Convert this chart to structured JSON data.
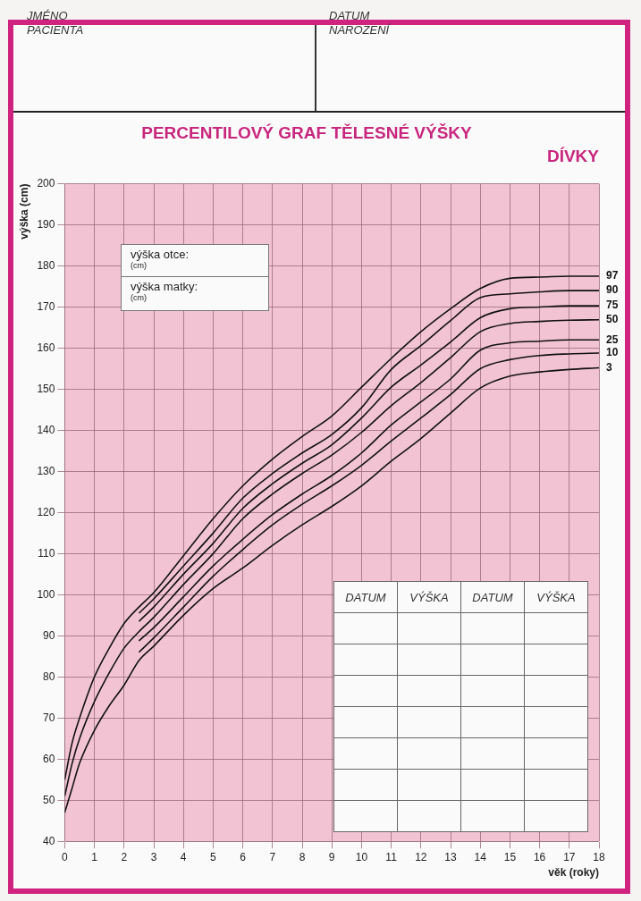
{
  "chart_data": {
    "type": "line",
    "title": "PERCENTILOVÝ GRAF TĚLESNÉ VÝŠKY",
    "subtitle": "DÍVKY",
    "xlabel": "věk (roky)",
    "ylabel": "výška (cm)",
    "x": [
      0,
      0.25,
      0.5,
      1,
      1.5,
      2,
      2.5,
      3,
      4,
      5,
      6,
      7,
      8,
      9,
      10,
      11,
      12,
      13,
      14,
      15,
      16,
      17,
      18
    ],
    "series": [
      {
        "name": "97",
        "color": "#111111",
        "values": [
          55,
          64,
          70,
          80,
          87,
          93,
          97,
          100.5,
          109.5,
          118.5,
          126.5,
          133,
          138.5,
          143.5,
          150.5,
          157.5,
          164,
          169.6,
          174.5,
          177,
          177.3,
          177.5,
          177.5
        ]
      },
      {
        "name": "90",
        "color": "#111111",
        "values": [
          null,
          null,
          null,
          null,
          null,
          null,
          95.5,
          99,
          107,
          115,
          123.5,
          129.5,
          134.5,
          139,
          145.5,
          154.8,
          160.6,
          166.7,
          172.3,
          173.2,
          173.7,
          174,
          174
        ]
      },
      {
        "name": "75",
        "color": "#111111",
        "values": [
          null,
          null,
          null,
          null,
          null,
          null,
          93.5,
          97,
          105,
          112.5,
          121,
          127,
          132,
          136.5,
          143,
          150.5,
          155.9,
          161.5,
          167.4,
          169.6,
          170,
          170.3,
          170.3
        ]
      },
      {
        "name": "50",
        "color": "#111111",
        "values": [
          51,
          59,
          65,
          74,
          81,
          87,
          91,
          94.5,
          102.5,
          110,
          118.5,
          124.5,
          129.5,
          134,
          139.5,
          146,
          151.6,
          157.7,
          164,
          166,
          166.5,
          166.8,
          166.9
        ]
      },
      {
        "name": "25",
        "color": "#111111",
        "values": [
          null,
          null,
          null,
          null,
          null,
          null,
          88.8,
          92,
          99.5,
          107,
          113.5,
          119.5,
          124.5,
          129,
          134.5,
          141.3,
          146.9,
          152.5,
          159.5,
          161.3,
          161.7,
          162,
          162
        ]
      },
      {
        "name": "10",
        "color": "#111111",
        "values": [
          null,
          null,
          null,
          null,
          null,
          null,
          86,
          89.5,
          97,
          104.5,
          111,
          117,
          122,
          126.5,
          131.5,
          137.4,
          143,
          148.7,
          155,
          157.2,
          158.2,
          158.6,
          158.8
        ]
      },
      {
        "name": "3",
        "color": "#111111",
        "values": [
          47,
          53,
          59,
          67,
          73,
          78,
          84,
          87.5,
          95,
          101.5,
          106.5,
          112,
          117,
          121.5,
          126.5,
          132.5,
          138,
          144.2,
          150.3,
          153.2,
          154.2,
          154.8,
          155.2
        ]
      }
    ],
    "xlim": [
      0,
      18
    ],
    "xticks": [
      0,
      1,
      2,
      3,
      4,
      5,
      6,
      7,
      8,
      9,
      10,
      11,
      12,
      13,
      14,
      15,
      16,
      17,
      18
    ],
    "ylim": [
      40,
      200
    ],
    "yticks": [
      40,
      50,
      60,
      70,
      80,
      90,
      100,
      110,
      120,
      130,
      140,
      150,
      160,
      170,
      180,
      190,
      200
    ],
    "grid": true,
    "legend": false,
    "marker": "none",
    "line_style": "solid",
    "annotations": [
      "JMÉNO PACIENTA",
      "DATUM NAROZENÍ",
      "výška otce:",
      "(cm)",
      "výška matky:",
      "(cm)",
      "DATUM",
      "VÝŠKA",
      "DATUM",
      "VÝŠKA"
    ]
  }
}
